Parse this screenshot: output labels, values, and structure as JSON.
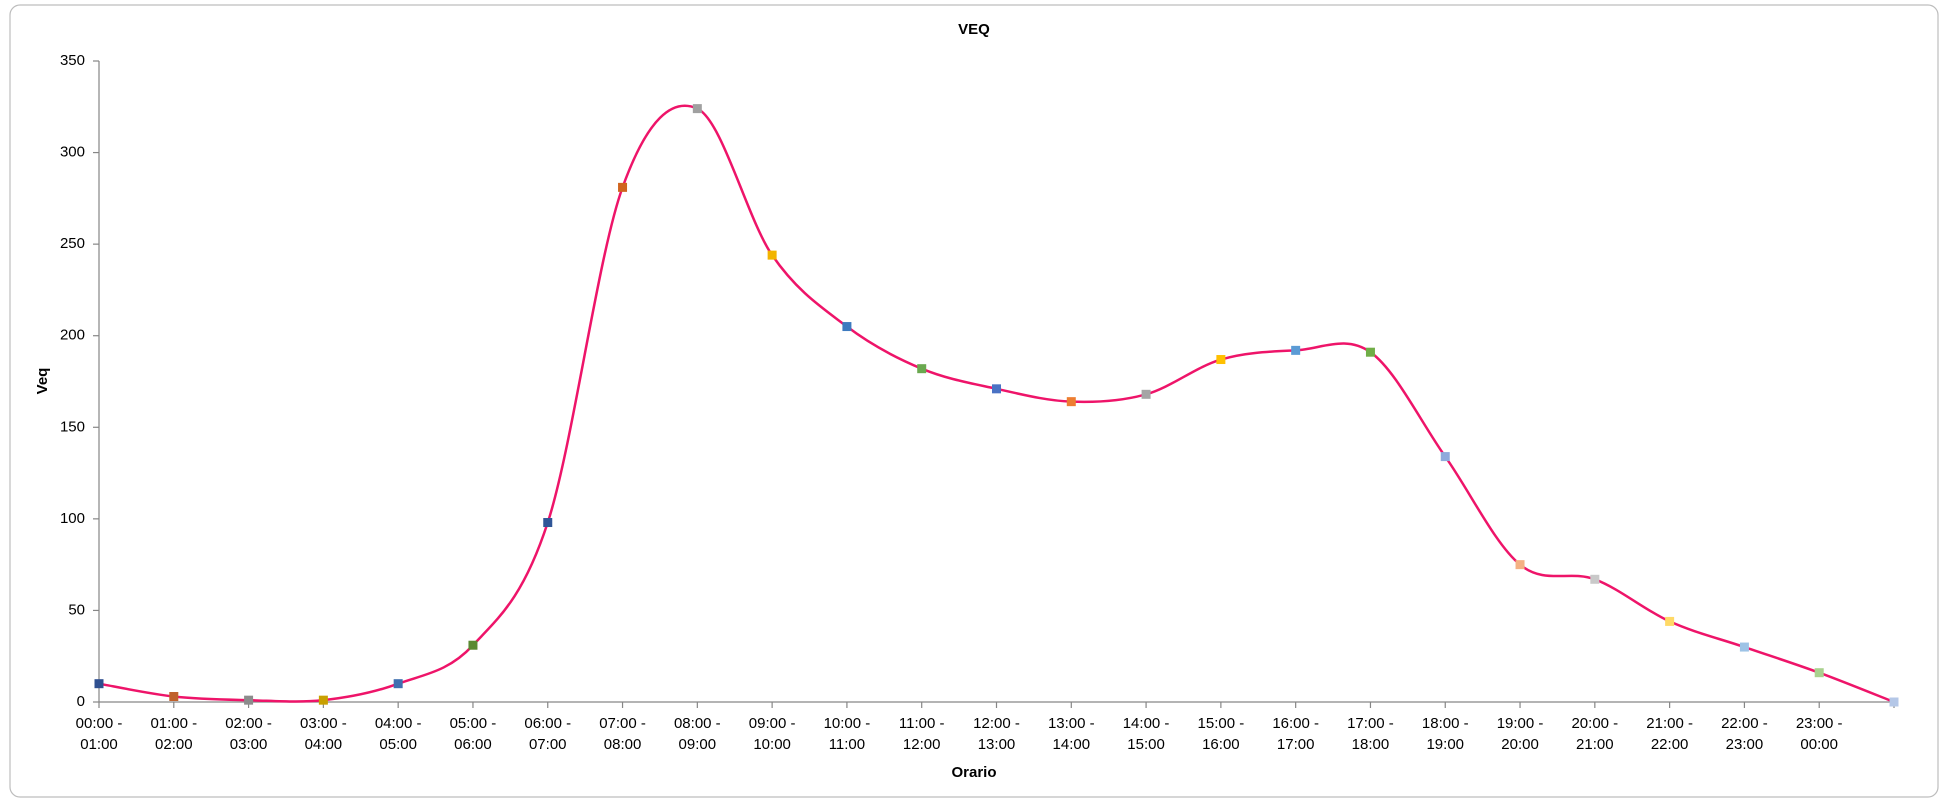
{
  "chart_data": {
    "type": "line",
    "title": "VEQ",
    "x_label": "Orario",
    "y_label": "Veq",
    "categories": [
      "00:00 - 01:00",
      "01:00 - 02:00",
      "02:00 - 03:00",
      "03:00 - 04:00",
      "04:00 - 05:00",
      "05:00 - 06:00",
      "06:00 - 07:00",
      "07:00 - 08:00",
      "08:00 - 09:00",
      "09:00 - 10:00",
      "10:00 - 11:00",
      "11:00 - 12:00",
      "12:00 - 13:00",
      "13:00 - 14:00",
      "14:00 - 15:00",
      "15:00 - 16:00",
      "16:00 - 17:00",
      "17:00 - 18:00",
      "18:00 - 19:00",
      "19:00 - 20:00",
      "20:00 - 21:00",
      "21:00 - 22:00",
      "22:00 - 23:00",
      "23:00 - 00:00",
      null
    ],
    "values": [
      10,
      3,
      1,
      1,
      10,
      31,
      98,
      281,
      324,
      244,
      205,
      182,
      171,
      164,
      168,
      187,
      192,
      191,
      134,
      75,
      67,
      44,
      30,
      16,
      0
    ],
    "color": "#ee1469",
    "smooth": true,
    "marker_colors": [
      "#2f4f8f",
      "#c0612b",
      "#8c8c8c",
      "#c9a000",
      "#3f6fb0",
      "#5b8a32",
      "#2f5597",
      "#d0641e",
      "#a0a0a0",
      "#f2b400",
      "#3d7abf",
      "#6aa84f",
      "#4a72c4",
      "#ed7d31",
      "#a5a5a5",
      "#ffc000",
      "#5b9bd5",
      "#70ad47",
      "#8faadc",
      "#f4b183",
      "#c9c9c9",
      "#ffd966",
      "#9dc3e6",
      "#a9d18e",
      "#b4c7e7"
    ],
    "ylim": [
      0,
      350
    ],
    "yticks": [
      0,
      50,
      100,
      150,
      200,
      250,
      300,
      350
    ],
    "grid": false
  }
}
